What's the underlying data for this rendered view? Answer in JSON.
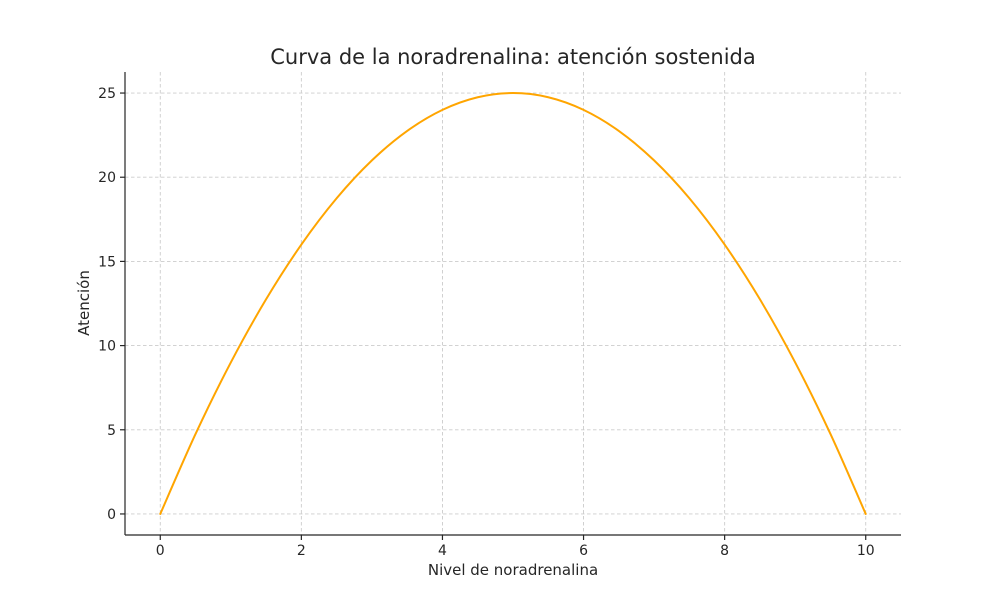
{
  "chart_data": {
    "type": "line",
    "title": "Curva de la noradrenalina: atención sostenida",
    "xlabel": "Nivel de noradrenalina",
    "ylabel": "Atención",
    "xlim": [
      -0.5,
      10.5
    ],
    "ylim": [
      -1.25,
      26.25
    ],
    "x_ticks": [
      0,
      2,
      4,
      6,
      8,
      10
    ],
    "y_ticks": [
      0,
      5,
      10,
      15,
      20,
      25
    ],
    "grid": true,
    "series": [
      {
        "color": "#FFA500",
        "x": [
          0,
          0.5,
          1,
          1.5,
          2,
          2.5,
          3,
          3.5,
          4,
          4.5,
          5,
          5.5,
          6,
          6.5,
          7,
          7.5,
          8,
          8.5,
          9,
          9.5,
          10
        ],
        "y": [
          0,
          4.75,
          9,
          12.75,
          16,
          18.75,
          21,
          22.75,
          24,
          24.75,
          25,
          24.75,
          24,
          22.75,
          21,
          18.75,
          16,
          12.75,
          9,
          4.75,
          0
        ]
      }
    ]
  }
}
